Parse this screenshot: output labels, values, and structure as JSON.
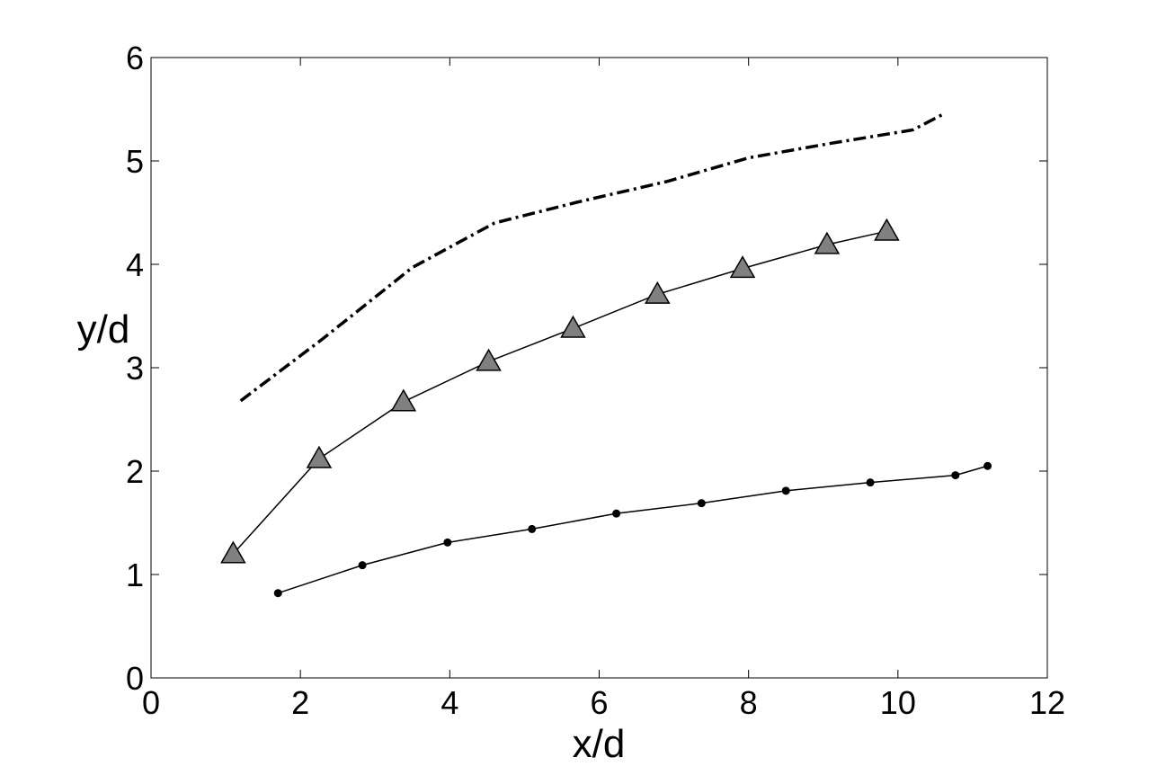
{
  "chart_data": {
    "type": "line",
    "title": "",
    "xlabel": "x/d",
    "ylabel": "y/d",
    "xlim": [
      0,
      12
    ],
    "ylim": [
      0,
      6
    ],
    "xticks": [
      "0",
      "2",
      "4",
      "6",
      "8",
      "10",
      "12"
    ],
    "yticks": [
      "0",
      "1",
      "2",
      "3",
      "4",
      "5",
      "6"
    ],
    "grid": false,
    "legend": "none",
    "series": [
      {
        "style": "dash-dot",
        "marker": "none",
        "color": "#000000",
        "x": [
          1.2,
          2.3,
          3.5,
          4.6,
          5.7,
          6.9,
          8.0,
          9.1,
          10.2,
          10.6
        ],
        "y": [
          2.68,
          3.28,
          3.97,
          4.4,
          4.6,
          4.8,
          5.03,
          5.17,
          5.3,
          5.45
        ]
      },
      {
        "style": "solid",
        "marker": "triangle",
        "marker_color": "#808080",
        "color": "#000000",
        "x": [
          1.1,
          2.25,
          3.38,
          4.52,
          5.65,
          6.78,
          7.92,
          9.05,
          9.85
        ],
        "y": [
          1.2,
          2.12,
          2.67,
          3.06,
          3.38,
          3.71,
          3.96,
          4.19,
          4.32
        ]
      },
      {
        "style": "solid",
        "marker": "dot",
        "color": "#000000",
        "x": [
          1.7,
          2.83,
          3.97,
          5.1,
          6.23,
          7.37,
          8.5,
          9.63,
          10.77,
          11.2
        ],
        "y": [
          0.82,
          1.09,
          1.31,
          1.44,
          1.59,
          1.69,
          1.81,
          1.89,
          1.96,
          2.05
        ]
      }
    ]
  }
}
